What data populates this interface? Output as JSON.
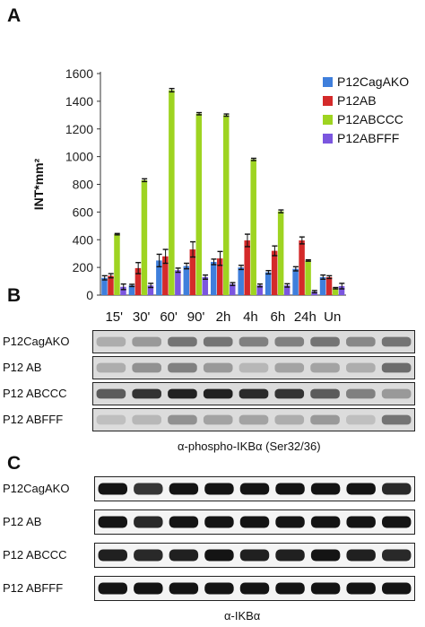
{
  "panels": {
    "a": "A",
    "b": "B",
    "c": "C"
  },
  "chart_data": {
    "type": "bar",
    "categories": [
      "15'",
      "30'",
      "60'",
      "90'",
      "2h",
      "4h",
      "6h",
      "24h",
      "Un"
    ],
    "ylabel": "INT*mm²",
    "ylim": [
      0,
      1600
    ],
    "yticks": [
      "0",
      "200",
      "400",
      "600",
      "800",
      "1000",
      "1200",
      "1400",
      "1600"
    ],
    "grid": false,
    "legend_position": "top-right",
    "series": [
      {
        "name": "P12CagAKO",
        "color": "#3f7fdc",
        "values": [
          125,
          70,
          250,
          210,
          240,
          200,
          165,
          190,
          130
        ],
        "errors": [
          15,
          8,
          45,
          20,
          20,
          15,
          12,
          15,
          15
        ]
      },
      {
        "name": "P12AB",
        "color": "#d42a2a",
        "values": [
          140,
          195,
          280,
          330,
          265,
          395,
          320,
          395,
          130
        ],
        "errors": [
          15,
          40,
          50,
          55,
          50,
          45,
          35,
          25,
          10
        ]
      },
      {
        "name": "P12ABCCC",
        "color": "#9ed421",
        "values": [
          440,
          830,
          1480,
          1310,
          1300,
          980,
          605,
          250,
          50
        ],
        "errors": [
          5,
          10,
          12,
          8,
          8,
          8,
          10,
          5,
          5
        ]
      },
      {
        "name": "P12ABFFF",
        "color": "#7b56df",
        "values": [
          60,
          70,
          180,
          130,
          80,
          70,
          70,
          25,
          65
        ],
        "errors": [
          20,
          15,
          15,
          15,
          10,
          10,
          12,
          8,
          20
        ]
      }
    ]
  },
  "blot_b": {
    "rows": [
      "P12CagAKO",
      "P12 AB",
      "P12 ABCCC",
      "P12 ABFFF"
    ],
    "caption": "α-phospho-IKBα (Ser32/36)",
    "intensity": [
      [
        0.25,
        0.35,
        0.55,
        0.55,
        0.5,
        0.5,
        0.55,
        0.45,
        0.55
      ],
      [
        0.25,
        0.4,
        0.5,
        0.35,
        0.2,
        0.3,
        0.3,
        0.25,
        0.6
      ],
      [
        0.7,
        0.9,
        1.0,
        1.0,
        0.95,
        0.9,
        0.7,
        0.5,
        0.35
      ],
      [
        0.15,
        0.2,
        0.4,
        0.3,
        0.3,
        0.25,
        0.35,
        0.15,
        0.55
      ]
    ]
  },
  "blot_c": {
    "rows": [
      "P12CagAKO",
      "P12 AB",
      "P12 ABCCC",
      "P12 ABFFF"
    ],
    "caption": "α-IKBα",
    "intensity": [
      [
        1.0,
        0.85,
        1.0,
        1.0,
        1.0,
        1.0,
        1.0,
        1.0,
        0.9
      ],
      [
        1.0,
        0.9,
        1.0,
        1.0,
        1.0,
        1.0,
        1.0,
        1.0,
        1.0
      ],
      [
        0.95,
        0.9,
        0.95,
        1.0,
        0.95,
        0.95,
        1.0,
        0.95,
        0.9
      ],
      [
        1.0,
        1.0,
        1.0,
        1.0,
        1.0,
        1.0,
        1.0,
        1.0,
        1.0
      ]
    ]
  }
}
